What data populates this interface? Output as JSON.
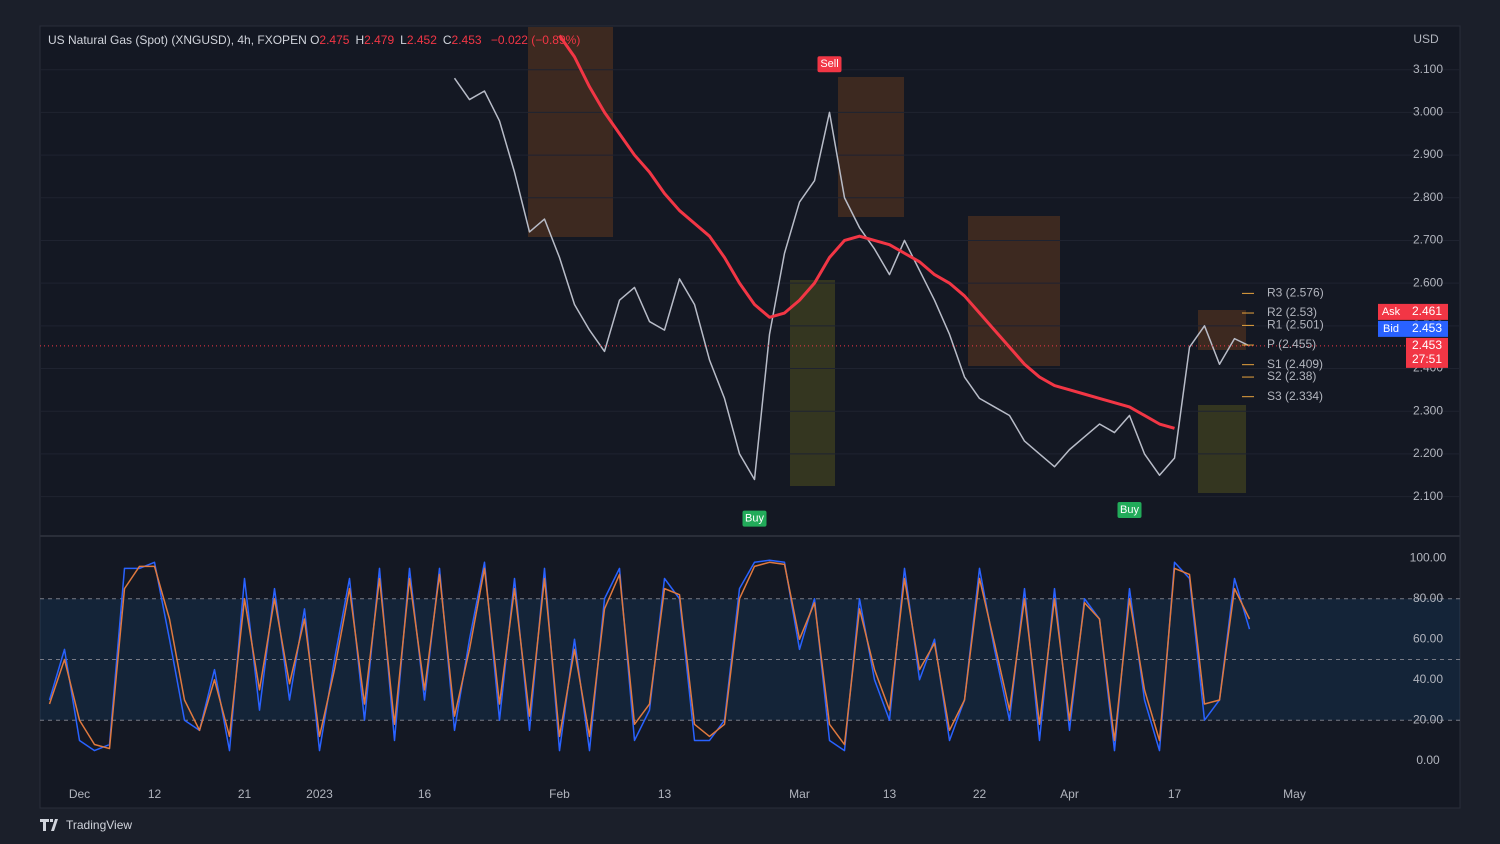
{
  "header": {
    "symbol": "US Natural Gas (Spot) (XNGUSD), 4h, FXOPEN",
    "ohlc": [
      {
        "label": "O",
        "value": 2.475
      },
      {
        "label": "H",
        "value": 2.479
      },
      {
        "label": "L",
        "value": 2.452
      },
      {
        "label": "C",
        "value": 2.453
      }
    ],
    "change": "−0.022 (−0.89%)",
    "currency": "USD"
  },
  "footer": "TradingView",
  "chart_data": [
    {
      "type": "line",
      "ylim": [
        2.01,
        3.2
      ],
      "yticks": [
        {
          "value": 2.1,
          "label": "2.100"
        },
        {
          "value": 2.2,
          "label": "2.200"
        },
        {
          "value": 2.3,
          "label": "2.300"
        },
        {
          "value": 2.4,
          "label": "2.400"
        },
        {
          "value": 2.5,
          "label": "2.500"
        },
        {
          "value": 2.6,
          "label": "2.600"
        },
        {
          "value": 2.7,
          "label": "2.700"
        },
        {
          "value": 2.8,
          "label": "2.800"
        },
        {
          "value": 2.9,
          "label": "2.900"
        },
        {
          "value": 3.0,
          "label": "3.000"
        },
        {
          "value": 3.1,
          "label": "3.100"
        }
      ],
      "grid": true,
      "series": [
        {
          "color": "#b8bcc8",
          "values": [
            null,
            null,
            null,
            null,
            null,
            null,
            null,
            null,
            null,
            null,
            null,
            null,
            null,
            null,
            null,
            null,
            null,
            null,
            null,
            null,
            null,
            null,
            null,
            null,
            null,
            null,
            null,
            3.08,
            3.03,
            3.05,
            2.98,
            2.86,
            2.72,
            2.75,
            2.66,
            2.55,
            2.49,
            2.44,
            2.56,
            2.59,
            2.51,
            2.49,
            2.61,
            2.55,
            2.42,
            2.33,
            2.2,
            2.14,
            2.48,
            2.67,
            2.79,
            2.84,
            3.0,
            2.8,
            2.73,
            2.68,
            2.62,
            2.7,
            2.63,
            2.56,
            2.48,
            2.38,
            2.33,
            2.31,
            2.29,
            2.23,
            2.2,
            2.17,
            2.21,
            2.24,
            2.27,
            2.25,
            2.29,
            2.2,
            2.15,
            2.19,
            2.45,
            2.5,
            2.41,
            2.47,
            2.453,
            null,
            null,
            null,
            null,
            null,
            null,
            null,
            null,
            null,
            null,
            null,
            null,
            null
          ]
        },
        {
          "color": "#f23645",
          "values": [
            null,
            null,
            null,
            null,
            null,
            null,
            null,
            null,
            null,
            null,
            null,
            null,
            null,
            null,
            null,
            null,
            null,
            null,
            null,
            null,
            null,
            null,
            null,
            null,
            null,
            null,
            null,
            null,
            null,
            null,
            null,
            null,
            null,
            null,
            3.18,
            3.13,
            3.06,
            3.0,
            2.95,
            2.9,
            2.86,
            2.81,
            2.77,
            2.74,
            2.71,
            2.66,
            2.6,
            2.55,
            2.52,
            2.53,
            2.56,
            2.6,
            2.66,
            2.7,
            2.71,
            2.7,
            2.69,
            2.67,
            2.65,
            2.62,
            2.6,
            2.57,
            2.53,
            2.49,
            2.45,
            2.41,
            2.38,
            2.36,
            2.35,
            2.34,
            2.33,
            2.32,
            2.31,
            2.29,
            2.27,
            2.26,
            null,
            null,
            null,
            null,
            null,
            null,
            null,
            null,
            null,
            null,
            null,
            null,
            null,
            null,
            null,
            null,
            null,
            null
          ]
        }
      ],
      "pivots": [
        {
          "value": 2.576,
          "label": "R3 (2.576)"
        },
        {
          "value": 2.53,
          "label": "R2 (2.53)"
        },
        {
          "value": 2.501,
          "label": "R1 (2.501)"
        },
        {
          "value": 2.455,
          "label": "P (2.455)"
        },
        {
          "value": 2.409,
          "label": "S1 (2.409)"
        },
        {
          "value": 2.38,
          "label": "S2 (2.38)"
        },
        {
          "value": 2.334,
          "label": "S3 (2.334)"
        }
      ],
      "signals": [
        {
          "label": "Sell",
          "at": 52,
          "value": 3.08,
          "color": "#f23645"
        },
        {
          "label": "Buy",
          "at": 47,
          "value": 2.1,
          "color": "#22ab5a"
        },
        {
          "label": "Buy",
          "at": 72,
          "value": 2.12,
          "color": "#22ab5a"
        }
      ],
      "ask": {
        "label": "Ask",
        "value": 2.461
      },
      "bid": {
        "label": "Bid",
        "value": 2.453
      },
      "last": 2.453,
      "countdown": "27:51"
    },
    {
      "type": "line",
      "categories": [
        null,
        null,
        "Dec",
        null,
        null,
        null,
        null,
        "12",
        null,
        null,
        null,
        null,
        null,
        "21",
        null,
        null,
        null,
        null,
        "2023",
        null,
        null,
        null,
        null,
        null,
        null,
        "16",
        null,
        null,
        null,
        null,
        null,
        null,
        null,
        null,
        "Feb",
        null,
        null,
        null,
        null,
        null,
        null,
        "13",
        null,
        null,
        null,
        null,
        null,
        null,
        null,
        null,
        "Mar",
        null,
        null,
        null,
        null,
        null,
        "13",
        null,
        null,
        null,
        null,
        null,
        "22",
        null,
        null,
        null,
        null,
        null,
        "Apr",
        null,
        null,
        null,
        null,
        null,
        null,
        "17",
        null,
        null,
        null,
        null,
        null,
        null,
        null,
        "May",
        null,
        null,
        null,
        null,
        null,
        null,
        null,
        null,
        null,
        null
      ],
      "ylim": [
        -11,
        110
      ],
      "yticks": [
        {
          "value": 0,
          "label": "0.00"
        },
        {
          "value": 20,
          "label": "20.00"
        },
        {
          "value": 40,
          "label": "40.00"
        },
        {
          "value": 60,
          "label": "60.00"
        },
        {
          "value": 80,
          "label": "80.00"
        },
        {
          "value": 100,
          "label": "100.00"
        }
      ],
      "band": {
        "upper": 80,
        "middle": 50,
        "lower": 20
      },
      "series": [
        {
          "color": "#2962ff",
          "values": [
            30,
            55,
            10,
            5,
            8,
            95,
            95,
            98,
            60,
            20,
            15,
            45,
            5,
            90,
            25,
            85,
            30,
            75,
            5,
            50,
            90,
            20,
            95,
            10,
            95,
            30,
            95,
            15,
            60,
            98,
            20,
            90,
            15,
            95,
            5,
            60,
            5,
            80,
            95,
            10,
            25,
            90,
            80,
            10,
            10,
            20,
            85,
            98,
            99,
            98,
            55,
            80,
            10,
            5,
            80,
            40,
            20,
            95,
            40,
            60,
            10,
            30,
            95,
            55,
            20,
            85,
            10,
            85,
            15,
            80,
            70,
            5,
            85,
            30,
            5,
            98,
            90,
            20,
            30,
            90,
            65,
            null,
            null,
            null,
            null,
            null,
            null,
            null,
            null,
            null,
            null,
            null,
            null,
            null
          ]
        },
        {
          "color": "#e0793e",
          "values": [
            28,
            50,
            20,
            8,
            6,
            85,
            96,
            96,
            70,
            30,
            15,
            40,
            12,
            80,
            35,
            80,
            38,
            70,
            12,
            45,
            85,
            28,
            90,
            18,
            90,
            35,
            92,
            22,
            55,
            95,
            28,
            85,
            22,
            90,
            12,
            55,
            12,
            75,
            92,
            18,
            28,
            85,
            82,
            18,
            12,
            18,
            80,
            96,
            98,
            97,
            60,
            78,
            18,
            8,
            75,
            45,
            25,
            90,
            45,
            58,
            15,
            30,
            90,
            58,
            25,
            80,
            18,
            80,
            20,
            78,
            70,
            10,
            80,
            35,
            10,
            95,
            92,
            28,
            30,
            85,
            70,
            null,
            null,
            null,
            null,
            null,
            null,
            null,
            null,
            null,
            null,
            null,
            null,
            null
          ]
        }
      ]
    }
  ]
}
